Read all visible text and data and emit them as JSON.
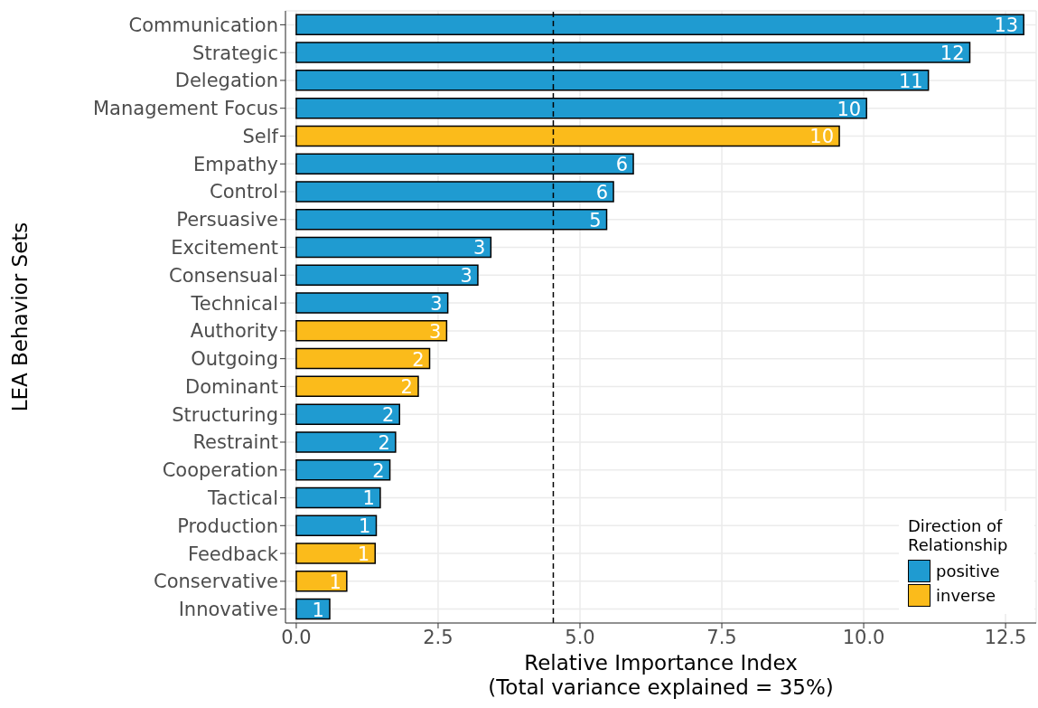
{
  "chart_data": {
    "type": "bar",
    "orientation": "horizontal",
    "stacked": true,
    "xlabel": "Relative Importance Index\n(Total variance explained = 35%)",
    "ylabel": "LEA Behavior Sets",
    "legend_title": "Direction of\nRelationship",
    "categories": [
      "Communication",
      "Strategic",
      "Delegation",
      "Management Focus",
      "Self",
      "Empathy",
      "Control",
      "Persuasive",
      "Excitement",
      "Consensual",
      "Technical",
      "Authority",
      "Outgoing",
      "Dominant",
      "Structuring",
      "Restraint",
      "Cooperation",
      "Tactical",
      "Production",
      "Feedback",
      "Conservative",
      "Innovative"
    ],
    "series": [
      {
        "name": "positive",
        "color": "#1f9bd1",
        "values": [
          12.82,
          11.87,
          11.14,
          10.05,
          null,
          5.94,
          5.59,
          5.47,
          3.43,
          3.2,
          2.67,
          null,
          null,
          null,
          1.82,
          1.75,
          1.65,
          1.48,
          1.41,
          null,
          null,
          0.59
        ],
        "value_labels": [
          "13",
          "12",
          "11",
          "10",
          null,
          "6",
          "6",
          "5",
          "3",
          "3",
          "3",
          null,
          null,
          null,
          "2",
          "2",
          "2",
          "1",
          "1",
          null,
          null,
          "1"
        ]
      },
      {
        "name": "inverse",
        "color": "#fbbb1b",
        "values": [
          null,
          null,
          null,
          null,
          9.57,
          null,
          null,
          null,
          null,
          null,
          null,
          2.65,
          2.35,
          2.15,
          null,
          null,
          null,
          null,
          null,
          1.39,
          0.89,
          null
        ],
        "value_labels": [
          null,
          null,
          null,
          null,
          "10",
          null,
          null,
          null,
          null,
          null,
          null,
          "3",
          "2",
          "2",
          null,
          null,
          null,
          null,
          null,
          "1",
          "1",
          null
        ]
      }
    ],
    "xlim": [
      -0.19,
      13.04
    ],
    "xticks": [
      {
        "value": 0,
        "label": "0.0"
      },
      {
        "value": 2.5,
        "label": "2.5"
      },
      {
        "value": 5,
        "label": "5.0"
      },
      {
        "value": 7.5,
        "label": "7.5"
      },
      {
        "value": 10,
        "label": "10.0"
      },
      {
        "value": 12.5,
        "label": "12.5"
      }
    ],
    "ref_lines": [
      {
        "axis": "x",
        "value": 4.53,
        "color": "#000000",
        "line_style": "dashed"
      }
    ],
    "grid": true,
    "legend": "bottom right"
  }
}
